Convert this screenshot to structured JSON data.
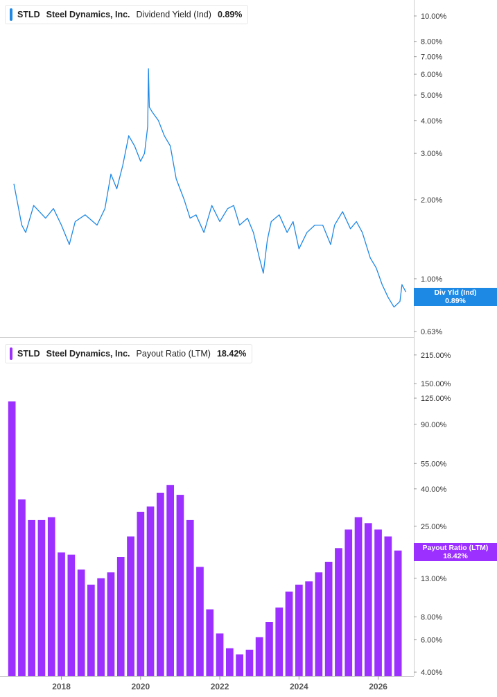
{
  "chart_data": [
    {
      "type": "line",
      "ticker": "STLD",
      "company": "Steel Dynamics, Inc.",
      "metric": "Dividend Yield (Ind)",
      "value_label": "0.89%",
      "tag_label": "Div Yld (Ind)",
      "tag_value": "0.89%",
      "color": "#1e88e5",
      "y_scale": "log",
      "ylim": [
        0.6,
        11.5
      ],
      "y_ticks": [
        0.63,
        0.82,
        1.0,
        2.0,
        3.0,
        4.0,
        5.0,
        6.0,
        7.0,
        8.0,
        10.0
      ],
      "y_tick_labels": [
        "0.63%",
        "0.82%",
        "1.00%",
        "2.00%",
        "3.00%",
        "4.00%",
        "5.00%",
        "6.00%",
        "7.00%",
        "8.00%",
        "10.00%"
      ],
      "x": [
        2016.8,
        2017.0,
        2017.1,
        2017.3,
        2017.6,
        2017.8,
        2018.0,
        2018.2,
        2018.35,
        2018.6,
        2018.9,
        2019.1,
        2019.25,
        2019.4,
        2019.55,
        2019.7,
        2019.85,
        2020.0,
        2020.1,
        2020.18,
        2020.2,
        2020.22,
        2020.3,
        2020.45,
        2020.6,
        2020.75,
        2020.9,
        2021.1,
        2021.25,
        2021.4,
        2021.6,
        2021.8,
        2022.0,
        2022.2,
        2022.35,
        2022.5,
        2022.7,
        2022.85,
        2023.0,
        2023.1,
        2023.2,
        2023.3,
        2023.5,
        2023.7,
        2023.85,
        2024.0,
        2024.2,
        2024.4,
        2024.6,
        2024.8,
        2024.9,
        2025.1,
        2025.3,
        2025.45,
        2025.6,
        2025.8,
        2025.95,
        2026.1,
        2026.25,
        2026.4,
        2026.55,
        2026.6,
        2026.7
      ],
      "y": [
        2.3,
        1.6,
        1.5,
        1.9,
        1.7,
        1.85,
        1.6,
        1.35,
        1.65,
        1.75,
        1.6,
        1.85,
        2.5,
        2.2,
        2.7,
        3.5,
        3.2,
        2.8,
        3.0,
        3.8,
        6.3,
        4.5,
        4.3,
        4.0,
        3.5,
        3.2,
        2.4,
        2.0,
        1.7,
        1.75,
        1.5,
        1.9,
        1.65,
        1.85,
        1.9,
        1.6,
        1.7,
        1.5,
        1.2,
        1.05,
        1.4,
        1.65,
        1.75,
        1.5,
        1.65,
        1.3,
        1.5,
        1.6,
        1.6,
        1.35,
        1.6,
        1.8,
        1.55,
        1.65,
        1.5,
        1.2,
        1.1,
        0.95,
        0.85,
        0.78,
        0.82,
        0.95,
        0.89
      ]
    },
    {
      "type": "bar",
      "ticker": "STLD",
      "company": "Steel Dynamics, Inc.",
      "metric": "Payout Ratio (LTM)",
      "value_label": "18.42%",
      "tag_label": "Payout Ratio (LTM)",
      "tag_value": "18.42%",
      "color": "#9b30ff",
      "y_scale": "log",
      "ylim": [
        3.8,
        260
      ],
      "y_ticks": [
        4,
        6,
        8,
        13,
        25,
        40,
        55,
        90,
        125,
        150,
        215
      ],
      "y_tick_labels": [
        "4.00%",
        "6.00%",
        "8.00%",
        "13.00%",
        "25.00%",
        "40.00%",
        "55.00%",
        "90.00%",
        "125.00%",
        "150.00%",
        "215.00%"
      ],
      "x": [
        2016.75,
        2017.0,
        2017.25,
        2017.5,
        2017.75,
        2018.0,
        2018.25,
        2018.5,
        2018.75,
        2019.0,
        2019.25,
        2019.5,
        2019.75,
        2020.0,
        2020.25,
        2020.5,
        2020.75,
        2021.0,
        2021.25,
        2021.5,
        2021.75,
        2022.0,
        2022.25,
        2022.5,
        2022.75,
        2023.0,
        2023.25,
        2023.5,
        2023.75,
        2024.0,
        2024.25,
        2024.5,
        2024.75,
        2025.0,
        2025.25,
        2025.5,
        2025.75,
        2026.0,
        2026.25,
        2026.5
      ],
      "values": [
        120,
        35,
        27,
        27,
        28,
        18,
        17.5,
        14.5,
        12,
        13,
        14,
        17,
        22,
        30,
        32,
        38,
        42,
        37,
        27,
        15,
        8.8,
        6.5,
        5.4,
        5.0,
        5.3,
        6.2,
        7.5,
        9.0,
        11,
        12,
        12.5,
        14,
        16,
        19,
        24,
        28,
        26,
        24,
        22,
        18.42
      ]
    }
  ],
  "x_axis": {
    "range": [
      2016.45,
      2026.9
    ],
    "ticks": [
      2018,
      2020,
      2022,
      2024,
      2026
    ],
    "tick_labels": [
      "2018",
      "2020",
      "2022",
      "2024",
      "2026"
    ]
  }
}
